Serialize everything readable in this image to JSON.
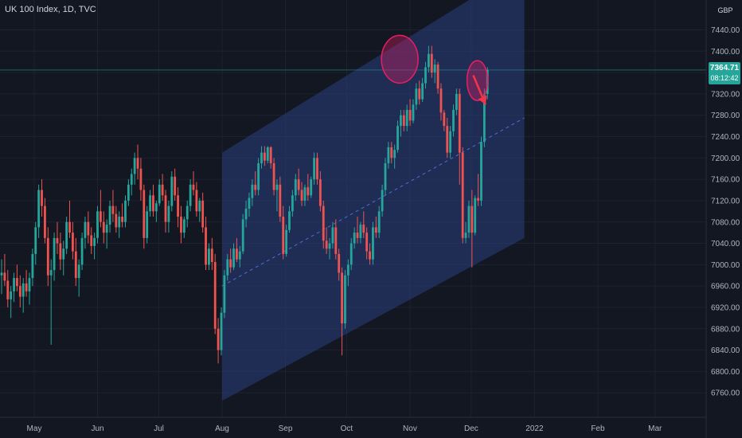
{
  "header": {
    "title": "UK 100 Index, 1D, TVC",
    "currency": "GBP"
  },
  "price_tag": {
    "price": "7364.71",
    "countdown": "08:12:42"
  },
  "colors": {
    "bg": "#131722",
    "up": "#26a69a",
    "down": "#ef5350",
    "channel": "#2a3f7f",
    "grid": "#1e2230"
  },
  "chart_data": {
    "type": "candlestick",
    "title": "UK 100 Index, 1D, TVC",
    "ylim": [
      6720,
      7490
    ],
    "y_ticks": [
      6760,
      6800,
      6840,
      6880,
      6920,
      6960,
      7000,
      7040,
      7080,
      7120,
      7160,
      7200,
      7240,
      7280,
      7320,
      7360,
      7400,
      7440
    ],
    "y_tick_labels": [
      "6760.00",
      "6800.00",
      "6840.00",
      "6880.00",
      "6920.00",
      "6960.00",
      "7000.00",
      "7040.00",
      "7080.00",
      "7120.00",
      "7160.00",
      "7200.00",
      "7240.00",
      "7280.00",
      "7320.00",
      "7360.00",
      "7400.00",
      "7440.00"
    ],
    "x_labels": [
      "May",
      "Jun",
      "Jul",
      "Aug",
      "Sep",
      "Oct",
      "Nov",
      "Dec",
      "2022",
      "Feb",
      "Mar"
    ],
    "x_label_day": [
      30,
      61,
      91,
      122,
      153,
      183,
      214,
      244,
      275,
      306,
      334
    ],
    "last_price": 7364.71,
    "channel": {
      "start_day": 122,
      "end_day": 270,
      "upper_start": 7210,
      "upper_end": 7560,
      "mid_start": 6960,
      "mid_end": 7275,
      "lower_start": 6745,
      "lower_end": 7050
    },
    "annotations": [
      {
        "type": "ellipse",
        "day": 209,
        "value": 7385
      },
      {
        "type": "ellipse",
        "day": 247,
        "value": 7345
      },
      {
        "type": "arrow",
        "from_day": 245,
        "from_value": 7355,
        "to_day": 251,
        "to_value": 7300
      }
    ],
    "candles": [
      [
        0,
        6980,
        7010,
        6945,
        6985
      ],
      [
        1,
        6985,
        7020,
        6960,
        6970
      ],
      [
        2,
        6970,
        6990,
        6920,
        6935
      ],
      [
        3,
        6935,
        6960,
        6900,
        6950
      ],
      [
        4,
        6950,
        6985,
        6930,
        6975
      ],
      [
        5,
        6975,
        7000,
        6950,
        6960
      ],
      [
        6,
        6960,
        6980,
        6920,
        6940
      ],
      [
        7,
        6940,
        6975,
        6910,
        6965
      ],
      [
        8,
        6965,
        6990,
        6940,
        6950
      ],
      [
        9,
        6950,
        6985,
        6925,
        6975
      ],
      [
        10,
        6975,
        7030,
        6960,
        7020
      ],
      [
        11,
        7020,
        7080,
        7000,
        7070
      ],
      [
        12,
        7070,
        7150,
        7050,
        7140
      ],
      [
        13,
        7140,
        7160,
        7090,
        7110
      ],
      [
        14,
        7110,
        7125,
        7040,
        7050
      ],
      [
        15,
        7050,
        7070,
        6960,
        6980
      ],
      [
        16,
        6980,
        7010,
        6850,
        6990
      ],
      [
        17,
        6990,
        7060,
        6970,
        7050
      ],
      [
        18,
        7050,
        7080,
        7020,
        7040
      ],
      [
        19,
        7040,
        7060,
        6990,
        7010
      ],
      [
        20,
        7010,
        7045,
        6980,
        7030
      ],
      [
        21,
        7030,
        7090,
        7020,
        7080
      ],
      [
        22,
        7080,
        7120,
        7050,
        7060
      ],
      [
        23,
        7060,
        7080,
        7010,
        7025
      ],
      [
        24,
        7025,
        7050,
        6960,
        6975
      ],
      [
        25,
        6975,
        7010,
        6940,
        7000
      ],
      [
        26,
        7000,
        7060,
        6990,
        7050
      ],
      [
        27,
        7050,
        7090,
        7030,
        7080
      ],
      [
        28,
        7080,
        7100,
        7040,
        7055
      ],
      [
        29,
        7055,
        7070,
        7020,
        7035
      ],
      [
        30,
        7035,
        7060,
        7010,
        7050
      ],
      [
        31,
        7050,
        7110,
        7040,
        7100
      ],
      [
        32,
        7100,
        7140,
        7070,
        7080
      ],
      [
        33,
        7080,
        7100,
        7040,
        7060
      ],
      [
        34,
        7060,
        7085,
        7030,
        7075
      ],
      [
        35,
        7075,
        7120,
        7060,
        7110
      ],
      [
        36,
        7110,
        7140,
        7080,
        7095
      ],
      [
        37,
        7095,
        7110,
        7060,
        7070
      ],
      [
        38,
        7070,
        7100,
        7050,
        7090
      ],
      [
        39,
        7090,
        7115,
        7070,
        7080
      ],
      [
        40,
        7080,
        7130,
        7070,
        7120
      ],
      [
        41,
        7120,
        7160,
        7110,
        7150
      ],
      [
        42,
        7150,
        7180,
        7130,
        7170
      ],
      [
        43,
        7170,
        7210,
        7150,
        7200
      ],
      [
        44,
        7200,
        7225,
        7160,
        7180
      ],
      [
        45,
        7180,
        7200,
        7120,
        7140
      ],
      [
        46,
        7140,
        7150,
        7030,
        7050
      ],
      [
        47,
        7050,
        7110,
        7040,
        7100
      ],
      [
        48,
        7100,
        7140,
        7090,
        7130
      ],
      [
        49,
        7130,
        7150,
        7090,
        7100
      ],
      [
        50,
        7100,
        7120,
        7080,
        7115
      ],
      [
        51,
        7115,
        7160,
        7110,
        7150
      ],
      [
        52,
        7150,
        7170,
        7120,
        7130
      ],
      [
        53,
        7130,
        7140,
        7060,
        7080
      ],
      [
        54,
        7080,
        7120,
        7060,
        7110
      ],
      [
        55,
        7110,
        7175,
        7100,
        7165
      ],
      [
        56,
        7165,
        7180,
        7120,
        7130
      ],
      [
        57,
        7130,
        7145,
        7070,
        7090
      ],
      [
        58,
        7090,
        7110,
        7040,
        7060
      ],
      [
        59,
        7060,
        7090,
        7050,
        7085
      ],
      [
        60,
        7085,
        7120,
        7070,
        7110
      ],
      [
        61,
        7110,
        7160,
        7100,
        7150
      ],
      [
        62,
        7150,
        7175,
        7130,
        7140
      ],
      [
        63,
        7140,
        7155,
        7090,
        7100
      ],
      [
        64,
        7100,
        7125,
        7080,
        7120
      ],
      [
        65,
        7120,
        7135,
        7060,
        7070
      ],
      [
        66,
        7070,
        7090,
        6990,
        7000
      ],
      [
        67,
        7000,
        7040,
        6990,
        7030
      ],
      [
        68,
        7030,
        7050,
        6990,
        7005
      ],
      [
        69,
        7005,
        7020,
        6870,
        6880
      ],
      [
        70,
        6880,
        6900,
        6815,
        6840
      ],
      [
        71,
        6840,
        6920,
        6830,
        6910
      ],
      [
        72,
        6910,
        6990,
        6900,
        6980
      ],
      [
        73,
        6980,
        7020,
        6970,
        7010
      ],
      [
        74,
        7010,
        7030,
        6985,
        6995
      ],
      [
        75,
        6995,
        7040,
        6990,
        7030
      ],
      [
        76,
        7030,
        7050,
        7005,
        7010
      ],
      [
        77,
        7010,
        7035,
        6995,
        7025
      ],
      [
        78,
        7025,
        7095,
        7020,
        7085
      ],
      [
        79,
        7085,
        7120,
        7070,
        7105
      ],
      [
        80,
        7105,
        7135,
        7090,
        7125
      ],
      [
        81,
        7125,
        7160,
        7110,
        7150
      ],
      [
        82,
        7150,
        7175,
        7130,
        7140
      ],
      [
        83,
        7140,
        7200,
        7130,
        7190
      ],
      [
        84,
        7190,
        7222,
        7180,
        7210
      ],
      [
        85,
        7210,
        7222,
        7185,
        7195
      ],
      [
        86,
        7195,
        7222,
        7190,
        7220
      ],
      [
        87,
        7220,
        7222,
        7180,
        7190
      ],
      [
        88,
        7190,
        7200,
        7130,
        7140
      ],
      [
        89,
        7140,
        7160,
        7100,
        7150
      ],
      [
        90,
        7150,
        7165,
        7080,
        7090
      ],
      [
        91,
        7090,
        7110,
        7010,
        7020
      ],
      [
        92,
        7020,
        7075,
        7015,
        7065
      ],
      [
        93,
        7065,
        7110,
        7060,
        7100
      ],
      [
        94,
        7100,
        7140,
        7090,
        7130
      ],
      [
        95,
        7130,
        7170,
        7120,
        7160
      ],
      [
        96,
        7160,
        7180,
        7130,
        7140
      ],
      [
        97,
        7140,
        7155,
        7110,
        7120
      ],
      [
        98,
        7120,
        7150,
        7110,
        7145
      ],
      [
        99,
        7145,
        7170,
        7120,
        7130
      ],
      [
        100,
        7130,
        7165,
        7125,
        7160
      ],
      [
        101,
        7160,
        7210,
        7150,
        7200
      ],
      [
        102,
        7200,
        7210,
        7150,
        7160
      ],
      [
        103,
        7160,
        7175,
        7100,
        7110
      ],
      [
        104,
        7110,
        7120,
        7030,
        7045
      ],
      [
        105,
        7045,
        7070,
        7020,
        7030
      ],
      [
        106,
        7030,
        7050,
        7010,
        7040
      ],
      [
        107,
        7040,
        7080,
        7030,
        7070
      ],
      [
        108,
        7070,
        7085,
        7010,
        7020
      ],
      [
        109,
        7020,
        7030,
        6970,
        6985
      ],
      [
        110,
        6985,
        6995,
        6830,
        6890
      ],
      [
        111,
        6890,
        6990,
        6880,
        6980
      ],
      [
        112,
        6980,
        7010,
        6960,
        7000
      ],
      [
        113,
        7000,
        7050,
        6990,
        7040
      ],
      [
        114,
        7040,
        7070,
        7030,
        7060
      ],
      [
        115,
        7060,
        7090,
        7040,
        7050
      ],
      [
        116,
        7050,
        7080,
        7040,
        7075
      ],
      [
        117,
        7075,
        7100,
        7050,
        7060
      ],
      [
        118,
        7060,
        7070,
        7010,
        7025
      ],
      [
        119,
        7025,
        7040,
        7000,
        7010
      ],
      [
        120,
        7010,
        7080,
        7000,
        7070
      ],
      [
        121,
        7070,
        7090,
        7050,
        7060
      ],
      [
        122,
        7060,
        7110,
        7050,
        7100
      ],
      [
        123,
        7100,
        7150,
        7090,
        7140
      ],
      [
        124,
        7140,
        7200,
        7130,
        7190
      ],
      [
        125,
        7190,
        7230,
        7180,
        7220
      ],
      [
        126,
        7220,
        7230,
        7190,
        7200
      ],
      [
        127,
        7200,
        7225,
        7180,
        7215
      ],
      [
        128,
        7215,
        7270,
        7210,
        7260
      ],
      [
        129,
        7260,
        7290,
        7240,
        7280
      ],
      [
        130,
        7280,
        7290,
        7250,
        7260
      ],
      [
        131,
        7260,
        7300,
        7250,
        7290
      ],
      [
        132,
        7290,
        7310,
        7260,
        7270
      ],
      [
        133,
        7270,
        7310,
        7265,
        7300
      ],
      [
        134,
        7300,
        7340,
        7290,
        7330
      ],
      [
        135,
        7330,
        7345,
        7300,
        7310
      ],
      [
        136,
        7310,
        7350,
        7305,
        7340
      ],
      [
        137,
        7340,
        7380,
        7330,
        7370
      ],
      [
        138,
        7370,
        7410,
        7360,
        7395
      ],
      [
        139,
        7395,
        7410,
        7350,
        7360
      ],
      [
        140,
        7360,
        7385,
        7340,
        7375
      ],
      [
        141,
        7375,
        7380,
        7320,
        7330
      ],
      [
        142,
        7330,
        7340,
        7270,
        7285
      ],
      [
        143,
        7285,
        7290,
        7250,
        7260
      ],
      [
        144,
        7260,
        7275,
        7200,
        7210
      ],
      [
        145,
        7210,
        7260,
        7200,
        7250
      ],
      [
        146,
        7250,
        7300,
        7240,
        7290
      ],
      [
        147,
        7290,
        7330,
        7280,
        7320
      ],
      [
        148,
        7320,
        7330,
        7150,
        7210
      ],
      [
        149,
        7210,
        7220,
        7040,
        7050
      ],
      [
        150,
        7050,
        7080,
        7040,
        7060
      ],
      [
        151,
        7060,
        7120,
        7050,
        7110
      ],
      [
        152,
        7110,
        7140,
        6995,
        7060
      ],
      [
        153,
        7060,
        7130,
        7055,
        7125
      ],
      [
        154,
        7125,
        7170,
        7110,
        7120
      ],
      [
        155,
        7120,
        7240,
        7110,
        7230
      ],
      [
        156,
        7230,
        7330,
        7220,
        7320
      ],
      [
        157,
        7320,
        7370,
        7310,
        7365
      ]
    ]
  }
}
